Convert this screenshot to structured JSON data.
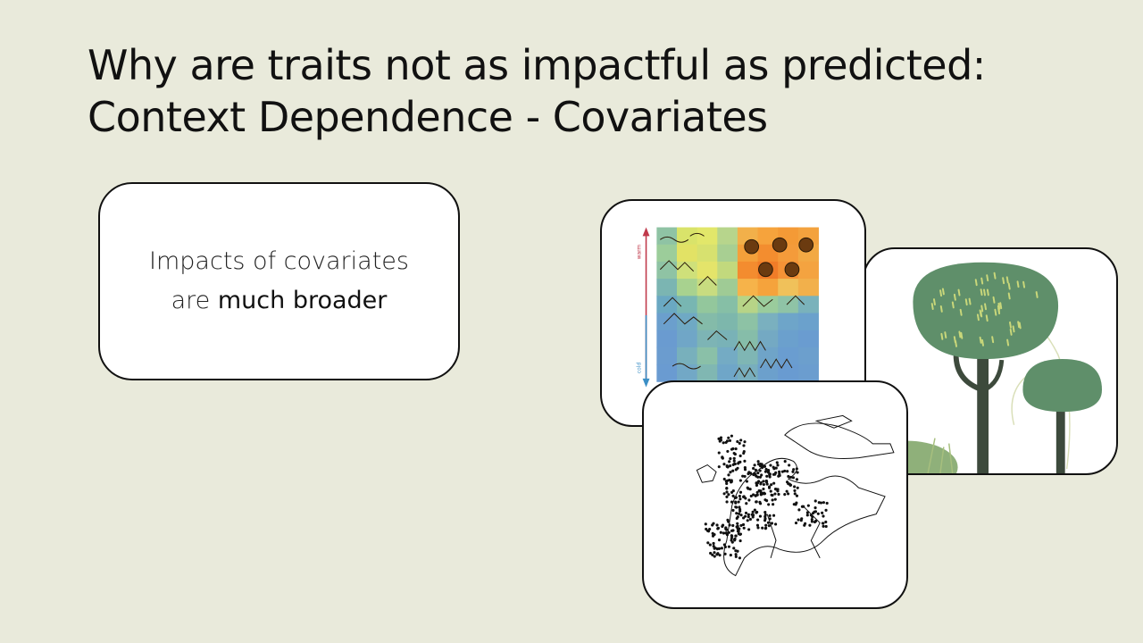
{
  "slide": {
    "title_line1": "Why are traits not as impactful as predicted:",
    "title_line2": "Context Dependence - Covariates",
    "body_part1": "Impacts of covariates",
    "body_part2": "are ",
    "body_bold": "much broader"
  },
  "images": {
    "heatmap_top_label": "warm",
    "heatmap_bottom_label": "cold",
    "heatmap_icon": "temperature-landscape-illustration",
    "tree_icon": "tree-illustration",
    "map_icon": "europe-occurrence-map"
  },
  "colors": {
    "background": "#e9eadb",
    "warm_arrow": "#c0394b",
    "cold_arrow": "#3b8fc6",
    "tree_green": "#5f8f6a",
    "tree_dots": "#c9d77a",
    "trunk": "#3d4a3c"
  }
}
